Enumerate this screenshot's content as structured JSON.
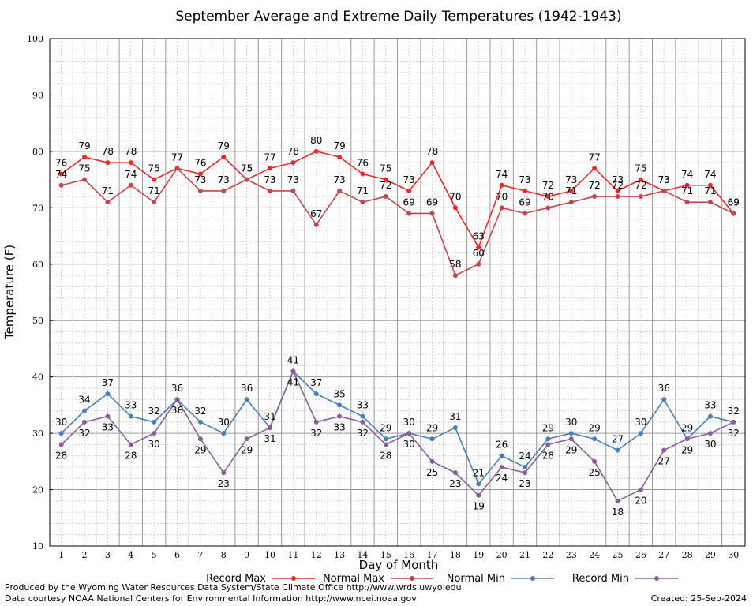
{
  "chart_data": {
    "type": "line",
    "title": "September Average and Extreme Daily Temperatures (1942-1943)",
    "xlabel": "Day of Month",
    "ylabel": "Temperature (F)",
    "x": [
      1,
      2,
      3,
      4,
      5,
      6,
      7,
      8,
      9,
      10,
      11,
      12,
      13,
      14,
      15,
      16,
      17,
      18,
      19,
      20,
      21,
      22,
      23,
      24,
      25,
      26,
      27,
      28,
      29,
      30
    ],
    "xlim": [
      0.5,
      30.5
    ],
    "ylim": [
      10,
      100
    ],
    "yticks": [
      10,
      20,
      30,
      40,
      50,
      60,
      70,
      80,
      90,
      100
    ],
    "grid": true,
    "legend_position": "bottom",
    "series": [
      {
        "name": "Record Max",
        "color": "#e8292b",
        "values": [
          76,
          79,
          78,
          78,
          75,
          77,
          76,
          79,
          75,
          77,
          78,
          80,
          79,
          76,
          75,
          73,
          78,
          70,
          63,
          74,
          73,
          72,
          73,
          77,
          73,
          75,
          73,
          74,
          74,
          69
        ]
      },
      {
        "name": "Normal Max",
        "color": "#c0474e",
        "values": [
          74,
          75,
          71,
          74,
          71,
          77,
          73,
          73,
          75,
          73,
          73,
          67,
          73,
          71,
          72,
          69,
          69,
          58,
          60,
          70,
          69,
          70,
          71,
          72,
          72,
          72,
          73,
          71,
          71,
          69
        ]
      },
      {
        "name": "Normal Min",
        "color": "#4a7fb5",
        "values": [
          30,
          34,
          37,
          33,
          32,
          36,
          32,
          30,
          36,
          31,
          41,
          37,
          35,
          33,
          29,
          30,
          29,
          31,
          21,
          26,
          24,
          29,
          30,
          29,
          27,
          30,
          36,
          29,
          33,
          32
        ]
      },
      {
        "name": "Record Min",
        "color": "#8a5d9a",
        "values": [
          28,
          32,
          33,
          28,
          30,
          36,
          29,
          23,
          29,
          31,
          41,
          32,
          33,
          32,
          28,
          30,
          25,
          23,
          19,
          24,
          23,
          28,
          29,
          25,
          18,
          20,
          27,
          29,
          30,
          32
        ]
      }
    ]
  },
  "footer": {
    "produced_by": "Produced by the Wyoming Water Resources Data System/State Climate Office http://www.wrds.uwyo.edu",
    "courtesy": "Data courtesy NOAA National Centers for Environmental Information http://www.ncei.noaa.gov",
    "created": "Created:  25-Sep-2024"
  }
}
